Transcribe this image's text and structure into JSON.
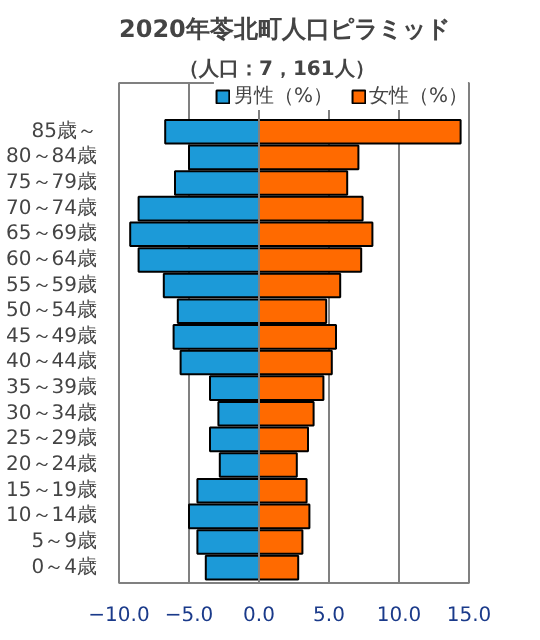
{
  "chart_data": {
    "type": "bar",
    "orientation": "horizontal",
    "title": "2020年苓北町人口ピラミッド",
    "subtitle": "（人口：7，161人）",
    "categories": [
      "85歳～",
      "80～84歳",
      "75～79歳",
      "70～74歳",
      "65～69歳",
      "60～64歳",
      "55～59歳",
      "50～54歳",
      "45～49歳",
      "40～44歳",
      "35～39歳",
      "30～34歳",
      "25～29歳",
      "20～24歳",
      "15～19歳",
      "10～14歳",
      "5～9歳",
      "0～4歳"
    ],
    "series": [
      {
        "name": "男性（%）",
        "color": "#1c9ad8",
        "values": [
          -6.7,
          -5.0,
          -6.0,
          -8.6,
          -9.2,
          -8.6,
          -6.8,
          -5.8,
          -6.1,
          -5.6,
          -3.5,
          -2.9,
          -3.5,
          -2.8,
          -4.4,
          -5.0,
          -4.4,
          -3.8
        ]
      },
      {
        "name": "女性（%）",
        "color": "#ff6a00",
        "values": [
          14.4,
          7.1,
          6.3,
          7.4,
          8.1,
          7.3,
          5.8,
          4.8,
          5.5,
          5.2,
          4.6,
          3.9,
          3.5,
          2.7,
          3.4,
          3.6,
          3.1,
          2.8
        ]
      }
    ],
    "xlim": [
      -10,
      15
    ],
    "xticks": [
      {
        "value": -10,
        "label": "−10.0"
      },
      {
        "value": -5,
        "label": "−5.0"
      },
      {
        "value": 0,
        "label": "0.0"
      },
      {
        "value": 5,
        "label": "5.0"
      },
      {
        "value": 10,
        "label": "10.0"
      },
      {
        "value": 15,
        "label": "15.0"
      }
    ],
    "stacked": true,
    "grid": "x",
    "legend": "top"
  }
}
